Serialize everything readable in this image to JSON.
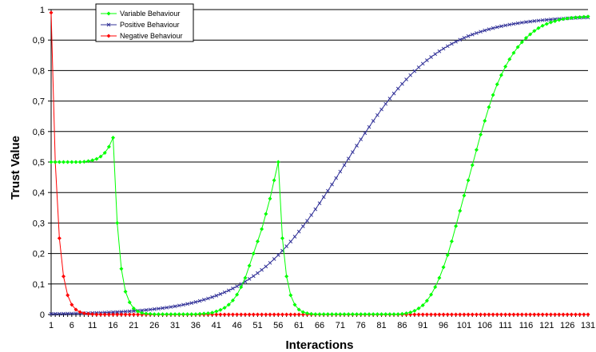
{
  "chart_data": {
    "type": "line",
    "xlabel": "Interactions",
    "ylabel": "Trust Value",
    "xlim": [
      1,
      131
    ],
    "ylim": [
      0,
      1
    ],
    "x_ticks": [
      1,
      6,
      11,
      16,
      21,
      26,
      31,
      36,
      41,
      46,
      51,
      56,
      61,
      66,
      71,
      76,
      81,
      86,
      91,
      96,
      101,
      106,
      111,
      116,
      121,
      126,
      131
    ],
    "y_ticks": [
      "0",
      "0,1",
      "0,2",
      "0,3",
      "0,4",
      "0,5",
      "0,6",
      "0,7",
      "0,8",
      "0,9",
      "1"
    ],
    "y_tick_values": [
      0,
      0.1,
      0.2,
      0.3,
      0.4,
      0.5,
      0.6,
      0.7,
      0.8,
      0.9,
      1
    ],
    "grid": "horizontal",
    "legend_position": "top-left",
    "series": [
      {
        "name": "Variable Behaviour",
        "color": "#00ff00",
        "marker": "diamond",
        "points": [
          [
            1,
            0.5
          ],
          [
            2,
            0.5
          ],
          [
            3,
            0.5
          ],
          [
            4,
            0.5
          ],
          [
            5,
            0.5
          ],
          [
            6,
            0.5
          ],
          [
            7,
            0.5
          ],
          [
            8,
            0.5
          ],
          [
            9,
            0.501
          ],
          [
            10,
            0.503
          ],
          [
            11,
            0.506
          ],
          [
            12,
            0.51
          ],
          [
            13,
            0.518
          ],
          [
            14,
            0.53
          ],
          [
            15,
            0.55
          ],
          [
            16,
            0.58
          ],
          [
            17,
            0.3
          ],
          [
            18,
            0.15
          ],
          [
            19,
            0.075
          ],
          [
            20,
            0.04
          ],
          [
            21,
            0.02
          ],
          [
            22,
            0.01
          ],
          [
            23,
            0.005
          ],
          [
            24,
            0.003
          ],
          [
            25,
            0.002
          ],
          [
            26,
            0.001
          ],
          [
            27,
            0.001
          ],
          [
            28,
            0.001
          ],
          [
            29,
            0.001
          ],
          [
            30,
            0.001
          ],
          [
            31,
            0.001
          ],
          [
            32,
            0.001
          ],
          [
            33,
            0.001
          ],
          [
            34,
            0.001
          ],
          [
            35,
            0.001
          ],
          [
            36,
            0.001
          ],
          [
            37,
            0.002
          ],
          [
            38,
            0.003
          ],
          [
            39,
            0.004
          ],
          [
            40,
            0.006
          ],
          [
            41,
            0.01
          ],
          [
            42,
            0.015
          ],
          [
            43,
            0.022
          ],
          [
            44,
            0.032
          ],
          [
            45,
            0.046
          ],
          [
            46,
            0.065
          ],
          [
            47,
            0.09
          ],
          [
            48,
            0.12
          ],
          [
            49,
            0.16
          ],
          [
            50,
            0.2
          ],
          [
            51,
            0.24
          ],
          [
            52,
            0.28
          ],
          [
            53,
            0.33
          ],
          [
            54,
            0.38
          ],
          [
            55,
            0.44
          ],
          [
            56,
            0.5
          ],
          [
            57,
            0.25
          ],
          [
            58,
            0.125
          ],
          [
            59,
            0.063
          ],
          [
            60,
            0.032
          ],
          [
            61,
            0.016
          ],
          [
            62,
            0.008
          ],
          [
            63,
            0.004
          ],
          [
            64,
            0.002
          ],
          [
            65,
            0.001
          ],
          [
            66,
            0.001
          ],
          [
            67,
            0.001
          ],
          [
            68,
            0.001
          ],
          [
            69,
            0.001
          ],
          [
            70,
            0.001
          ],
          [
            71,
            0.001
          ],
          [
            72,
            0.001
          ],
          [
            73,
            0.001
          ],
          [
            74,
            0.001
          ],
          [
            75,
            0.001
          ],
          [
            76,
            0.001
          ],
          [
            77,
            0.001
          ],
          [
            78,
            0.001
          ],
          [
            79,
            0.001
          ],
          [
            80,
            0.001
          ],
          [
            81,
            0.001
          ],
          [
            82,
            0.001
          ],
          [
            83,
            0.001
          ],
          [
            84,
            0.001
          ],
          [
            85,
            0.001
          ],
          [
            86,
            0.002
          ],
          [
            87,
            0.004
          ],
          [
            88,
            0.007
          ],
          [
            89,
            0.012
          ],
          [
            90,
            0.02
          ],
          [
            91,
            0.03
          ],
          [
            92,
            0.045
          ],
          [
            93,
            0.065
          ],
          [
            94,
            0.09
          ],
          [
            95,
            0.12
          ],
          [
            96,
            0.155
          ],
          [
            97,
            0.195
          ],
          [
            98,
            0.24
          ],
          [
            99,
            0.29
          ],
          [
            100,
            0.34
          ],
          [
            101,
            0.39
          ],
          [
            102,
            0.44
          ],
          [
            103,
            0.49
          ],
          [
            104,
            0.54
          ],
          [
            105,
            0.59
          ],
          [
            106,
            0.635
          ],
          [
            107,
            0.68
          ],
          [
            108,
            0.72
          ],
          [
            109,
            0.755
          ],
          [
            110,
            0.785
          ],
          [
            111,
            0.813
          ],
          [
            112,
            0.837
          ],
          [
            113,
            0.858
          ],
          [
            114,
            0.877
          ],
          [
            115,
            0.893
          ],
          [
            116,
            0.907
          ],
          [
            117,
            0.919
          ],
          [
            118,
            0.93
          ],
          [
            119,
            0.939
          ],
          [
            120,
            0.947
          ],
          [
            121,
            0.953
          ],
          [
            122,
            0.958
          ],
          [
            123,
            0.962
          ],
          [
            124,
            0.966
          ],
          [
            125,
            0.969
          ],
          [
            126,
            0.971
          ],
          [
            127,
            0.973
          ],
          [
            128,
            0.974
          ],
          [
            129,
            0.975
          ],
          [
            130,
            0.976
          ],
          [
            131,
            0.977
          ]
        ]
      },
      {
        "name": "Positive Behaviour",
        "color": "#333399",
        "marker": "cross",
        "logistic": {
          "L": 0.98,
          "k": 0.087,
          "x0": 72
        }
      },
      {
        "name": "Negative Behaviour",
        "color": "#ff0000",
        "marker": "diamond",
        "points": [
          [
            1,
            0.99
          ],
          [
            2,
            0.5
          ],
          [
            3,
            0.25
          ],
          [
            4,
            0.125
          ],
          [
            5,
            0.063
          ],
          [
            6,
            0.032
          ],
          [
            7,
            0.016
          ],
          [
            8,
            0.008
          ],
          [
            9,
            0.004
          ],
          [
            10,
            0.002
          ],
          [
            11,
            0.001
          ]
        ],
        "tail_value": 0
      }
    ]
  }
}
